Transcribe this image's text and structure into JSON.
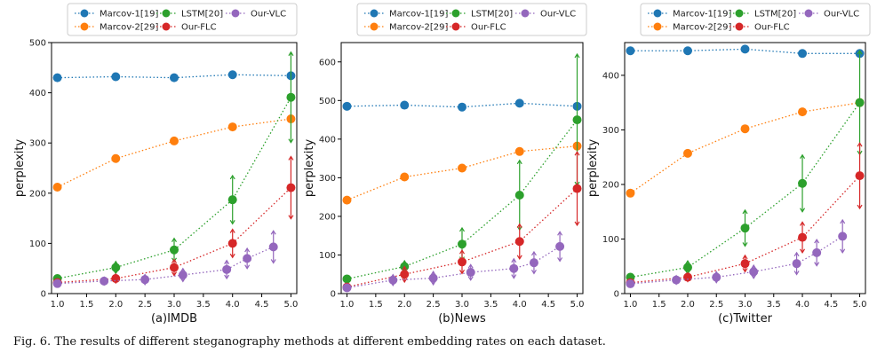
{
  "colors": {
    "Marcov-1[19]": "#1f77b4",
    "Marcov-2[29]": "#ff7f0e",
    "LSTM[20]": "#2ca02c",
    "Our-FLC": "#d62728",
    "Our-VLC": "#9467bd"
  },
  "caption": "Fig. 6.  The results of different steganography methods at different embedding rates on each dataset.",
  "chart_data": [
    {
      "type": "line",
      "xlabel": "(a)IMDB",
      "ylabel": "perplexity",
      "xlim": [
        0.9,
        5.1
      ],
      "ylim": [
        0,
        500
      ],
      "xticks": [
        1.0,
        1.5,
        2.0,
        2.5,
        3.0,
        3.5,
        4.0,
        4.5,
        5.0
      ],
      "yticks": [
        0,
        100,
        200,
        300,
        400,
        500
      ],
      "legend": "top",
      "series": [
        {
          "name": "Marcov-1[19]",
          "x": [
            1,
            2,
            3,
            4,
            5
          ],
          "values": [
            430,
            432,
            430,
            436,
            434
          ]
        },
        {
          "name": "Marcov-2[29]",
          "x": [
            1,
            2,
            3,
            4,
            5
          ],
          "values": [
            212,
            269,
            304,
            332,
            348
          ]
        },
        {
          "name": "LSTM[20]",
          "x": [
            1,
            2,
            3,
            4,
            5
          ],
          "values": [
            30,
            52,
            87,
            187,
            391
          ],
          "err": [
            5,
            12,
            23,
            48,
            90
          ]
        },
        {
          "name": "Our-FLC",
          "x": [
            1,
            2,
            3,
            4,
            5
          ],
          "values": [
            22,
            30,
            52,
            100,
            211
          ],
          "err": [
            4,
            9,
            16,
            28,
            62
          ]
        },
        {
          "name": "Our-VLC",
          "x": [
            1,
            1.8,
            2.5,
            3.15,
            3.9,
            4.25,
            4.7
          ],
          "values": [
            20,
            25,
            28,
            37,
            48,
            70,
            93
          ],
          "err": [
            3,
            8,
            10,
            13,
            18,
            20,
            32
          ]
        }
      ]
    },
    {
      "type": "line",
      "xlabel": "(b)News",
      "ylabel": "perplexity",
      "xlim": [
        0.9,
        5.1
      ],
      "ylim": [
        0,
        650
      ],
      "xticks": [
        1.0,
        1.5,
        2.0,
        2.5,
        3.0,
        3.5,
        4.0,
        4.5,
        5.0
      ],
      "yticks": [
        0,
        100,
        200,
        300,
        400,
        500,
        600
      ],
      "legend": "top",
      "series": [
        {
          "name": "Marcov-1[19]",
          "x": [
            1,
            2,
            3,
            4,
            5
          ],
          "values": [
            485,
            488,
            483,
            493,
            485
          ]
        },
        {
          "name": "Marcov-2[29]",
          "x": [
            1,
            2,
            3,
            4,
            5
          ],
          "values": [
            242,
            302,
            325,
            368,
            382
          ]
        },
        {
          "name": "LSTM[20]",
          "x": [
            1,
            2,
            3,
            4,
            5
          ],
          "values": [
            38,
            70,
            128,
            255,
            450
          ],
          "err": [
            6,
            15,
            42,
            90,
            170
          ]
        },
        {
          "name": "Our-FLC",
          "x": [
            1,
            2,
            3,
            4,
            5
          ],
          "values": [
            17,
            50,
            82,
            135,
            272
          ],
          "err": [
            4,
            20,
            30,
            45,
            95
          ]
        },
        {
          "name": "Our-VLC",
          "x": [
            1,
            1.8,
            2.5,
            3.15,
            3.9,
            4.25,
            4.7
          ],
          "values": [
            15,
            35,
            40,
            55,
            65,
            80,
            122
          ],
          "err": [
            3,
            14,
            17,
            20,
            25,
            28,
            38
          ]
        }
      ]
    },
    {
      "type": "line",
      "xlabel": "(c)Twitter",
      "ylabel": "perplexity",
      "xlim": [
        0.9,
        5.1
      ],
      "ylim": [
        0,
        460
      ],
      "xticks": [
        1.0,
        1.5,
        2.0,
        2.5,
        3.0,
        3.5,
        4.0,
        4.5,
        5.0
      ],
      "yticks": [
        0,
        100,
        200,
        300,
        400
      ],
      "legend": "top",
      "series": [
        {
          "name": "Marcov-1[19]",
          "x": [
            1,
            2,
            3,
            4,
            5
          ],
          "values": [
            445,
            445,
            448,
            440,
            440
          ]
        },
        {
          "name": "Marcov-2[29]",
          "x": [
            1,
            2,
            3,
            4,
            5
          ],
          "values": [
            184,
            257,
            302,
            333,
            350
          ]
        },
        {
          "name": "LSTM[20]",
          "x": [
            1,
            2,
            3,
            4,
            5
          ],
          "values": [
            30,
            48,
            120,
            202,
            350
          ],
          "err": [
            5,
            12,
            33,
            52,
            95
          ]
        },
        {
          "name": "Our-FLC",
          "x": [
            1,
            2,
            3,
            4,
            5
          ],
          "values": [
            20,
            30,
            55,
            103,
            216
          ],
          "err": [
            3,
            8,
            15,
            28,
            60
          ]
        },
        {
          "name": "Our-VLC",
          "x": [
            1,
            1.8,
            2.5,
            3.15,
            3.9,
            4.25,
            4.7
          ],
          "values": [
            18,
            25,
            30,
            40,
            55,
            75,
            105
          ],
          "err": [
            3,
            8,
            10,
            12,
            20,
            24,
            30
          ]
        }
      ]
    }
  ]
}
